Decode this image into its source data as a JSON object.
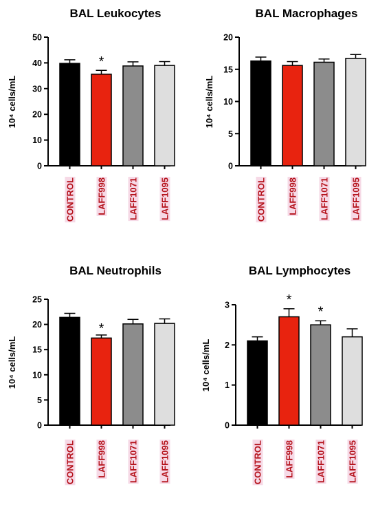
{
  "chart_data": [
    {
      "type": "bar",
      "title": "BAL Leukocytes",
      "ylabel": "10⁴ cells/mL",
      "ylim": [
        0,
        50
      ],
      "yticks": [
        "0",
        "10",
        "20",
        "30",
        "40",
        "50"
      ],
      "categories": [
        "CONTROL",
        "LAFF998",
        "LAFF1071",
        "LAFF1095"
      ],
      "values": [
        39.8,
        35.6,
        38.8,
        39.0
      ],
      "errors": [
        1.4,
        1.5,
        1.6,
        1.5
      ],
      "significance": [
        "",
        "*",
        "",
        ""
      ]
    },
    {
      "type": "bar",
      "title": "BAL Macrophages",
      "ylabel": "10⁴ cells/mL",
      "ylim": [
        0,
        20
      ],
      "yticks": [
        "0",
        "5",
        "10",
        "15",
        "20"
      ],
      "categories": [
        "CONTROL",
        "LAFF998",
        "LAFF1071",
        "LAFF1095"
      ],
      "values": [
        16.3,
        15.6,
        16.1,
        16.7
      ],
      "errors": [
        0.6,
        0.6,
        0.5,
        0.6
      ],
      "significance": [
        "",
        "",
        "",
        ""
      ]
    },
    {
      "type": "bar",
      "title": "BAL Neutrophils",
      "ylabel": "10⁴ cells/mL",
      "ylim": [
        0,
        25
      ],
      "yticks": [
        "0",
        "5",
        "10",
        "15",
        "20",
        "25"
      ],
      "categories": [
        "CONTROL",
        "LAFF998",
        "LAFF1071",
        "LAFF1095"
      ],
      "values": [
        21.4,
        17.3,
        20.1,
        20.2
      ],
      "errors": [
        0.8,
        0.6,
        0.9,
        0.9
      ],
      "significance": [
        "",
        "*",
        "",
        ""
      ]
    },
    {
      "type": "bar",
      "title": "BAL Lymphocytes",
      "ylabel": "10⁴ cells/mL",
      "ylim": [
        0,
        3
      ],
      "yticks": [
        "0",
        "1",
        "2",
        "3"
      ],
      "categories": [
        "CONTROL",
        "LAFF998",
        "LAFF1071",
        "LAFF1095"
      ],
      "values": [
        2.1,
        2.7,
        2.5,
        2.2
      ],
      "errors": [
        0.1,
        0.2,
        0.1,
        0.2
      ],
      "significance": [
        "",
        "*",
        "*",
        ""
      ]
    }
  ],
  "colors": {
    "bars": [
      "#000000",
      "#e8230f",
      "#8c8c8c",
      "#dedede"
    ],
    "category_label": "#b5121b",
    "category_label_highlight": "#f6d9e6",
    "axis": "#000000"
  }
}
